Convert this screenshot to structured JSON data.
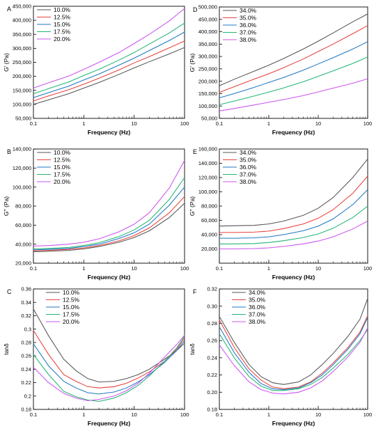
{
  "colors": {
    "gray": "#555555",
    "red": "#e8413a",
    "blue": "#1f77c4",
    "green": "#22b573",
    "violet": "#cc55ee"
  },
  "chart_data": [
    {
      "type": "line",
      "panel": "A",
      "xscale": "log",
      "xlabel": "Frequency (Hz)",
      "ylabel": "G' (Pa)",
      "xlim": [
        0.1,
        100
      ],
      "ylim": [
        50000,
        450000
      ],
      "xticks": [
        0.1,
        1,
        10,
        100
      ],
      "xticklabels": [
        "0.1",
        "1",
        "10",
        "100"
      ],
      "yticks": [
        50000,
        100000,
        150000,
        200000,
        250000,
        300000,
        350000,
        400000,
        450000
      ],
      "yticklabels": [
        "50,000",
        "100,000",
        "150,000",
        "200,000",
        "250,000",
        "300,000",
        "350,000",
        "400,000",
        "450,000"
      ],
      "legend_loc": "top-left",
      "x": [
        0.1,
        0.2,
        0.5,
        1,
        2,
        5,
        10,
        20,
        50,
        100
      ],
      "series": [
        {
          "name": "10.0%",
          "color": "gray",
          "values": [
            100000,
            116000,
            138000,
            158000,
            178000,
            207000,
            230000,
            252000,
            280000,
            303000
          ]
        },
        {
          "name": "12.5%",
          "color": "red",
          "values": [
            112000,
            130000,
            152000,
            172000,
            193000,
            223000,
            248000,
            270000,
            302000,
            326000
          ]
        },
        {
          "name": "15.0%",
          "color": "blue",
          "values": [
            124000,
            142000,
            165000,
            187000,
            208000,
            240000,
            265000,
            292000,
            328000,
            358000
          ]
        },
        {
          "name": "17.5%",
          "color": "green",
          "values": [
            138000,
            156000,
            180000,
            203000,
            225000,
            258000,
            285000,
            315000,
            355000,
            390000
          ]
        },
        {
          "name": "20.0%",
          "color": "violet",
          "values": [
            158000,
            177000,
            201000,
            225000,
            250000,
            285000,
            317000,
            350000,
            398000,
            442000
          ]
        }
      ]
    },
    {
      "type": "line",
      "panel": "D",
      "xscale": "log",
      "xlabel": "Frequency (Hz)",
      "ylabel": "G' (Pa)",
      "xlim": [
        0.1,
        100
      ],
      "ylim": [
        50000,
        500000
      ],
      "xticks": [
        0.1,
        1,
        10,
        100
      ],
      "xticklabels": [
        "0.1",
        "1",
        "10",
        "100"
      ],
      "yticks": [
        50000,
        100000,
        150000,
        200000,
        250000,
        300000,
        350000,
        400000,
        450000,
        500000
      ],
      "yticklabels": [
        "50,000",
        "100,000",
        "150,000",
        "200,000",
        "250,000",
        "300,000",
        "350,000",
        "400,000",
        "450,000",
        "500,000"
      ],
      "legend_loc": "top-left",
      "x": [
        0.1,
        0.2,
        0.5,
        1,
        2,
        5,
        10,
        20,
        50,
        100
      ],
      "series": [
        {
          "name": "34.0%",
          "color": "gray",
          "values": [
            182000,
            208000,
            240000,
            265000,
            292000,
            330000,
            362000,
            395000,
            440000,
            472000
          ]
        },
        {
          "name": "35.0%",
          "color": "red",
          "values": [
            155000,
            178000,
            208000,
            230000,
            255000,
            290000,
            320000,
            350000,
            392000,
            425000
          ]
        },
        {
          "name": "36.0%",
          "color": "blue",
          "values": [
            133000,
            150000,
            175000,
            195000,
            215000,
            245000,
            270000,
            295000,
            330000,
            360000
          ]
        },
        {
          "name": "37.0%",
          "color": "green",
          "values": [
            105000,
            120000,
            140000,
            156000,
            173000,
            198000,
            220000,
            242000,
            272000,
            298000
          ]
        },
        {
          "name": "38.0%",
          "color": "violet",
          "values": [
            80000,
            90000,
            104000,
            115000,
            126000,
            142000,
            157000,
            172000,
            192000,
            210000
          ]
        }
      ]
    },
    {
      "type": "line",
      "panel": "B",
      "xscale": "log",
      "xlabel": "Frequency (Hz)",
      "ylabel": "G'' (Pa)",
      "xlim": [
        0.1,
        100
      ],
      "ylim": [
        20000,
        140000
      ],
      "xticks": [
        0.1,
        1,
        10,
        100
      ],
      "xticklabels": [
        "0.1",
        "1",
        "10",
        "100"
      ],
      "yticks": [
        20000,
        40000,
        60000,
        80000,
        100000,
        120000,
        140000
      ],
      "yticklabels": [
        "20,000",
        "40,000",
        "60,000",
        "80,000",
        "100,000",
        "120,000",
        "140,000"
      ],
      "legend_loc": "top-left",
      "x": [
        0.1,
        0.2,
        0.5,
        1,
        2,
        5,
        10,
        20,
        50,
        100
      ],
      "series": [
        {
          "name": "10.0%",
          "color": "gray",
          "values": [
            32000,
            32500,
            33500,
            35000,
            37500,
            42000,
            47000,
            54000,
            68000,
            83000
          ]
        },
        {
          "name": "12.5%",
          "color": "red",
          "values": [
            33000,
            33500,
            34500,
            36000,
            38500,
            43500,
            49000,
            57000,
            73000,
            90000
          ]
        },
        {
          "name": "15.0%",
          "color": "blue",
          "values": [
            34000,
            34500,
            35500,
            37500,
            40000,
            46000,
            52000,
            61000,
            81000,
            100000
          ]
        },
        {
          "name": "17.5%",
          "color": "green",
          "values": [
            35000,
            35500,
            36500,
            38500,
            41500,
            48000,
            55000,
            65000,
            87000,
            110000
          ]
        },
        {
          "name": "20.0%",
          "color": "violet",
          "values": [
            38000,
            38500,
            40000,
            42000,
            45500,
            53000,
            61000,
            73000,
            99000,
            128000
          ]
        }
      ]
    },
    {
      "type": "line",
      "panel": "E",
      "xscale": "log",
      "xlabel": "Frequency (Hz)",
      "ylabel": "G'' (Pa)",
      "xlim": [
        0.1,
        100
      ],
      "ylim": [
        0,
        160000
      ],
      "xticks": [
        0.1,
        1,
        10,
        100
      ],
      "xticklabels": [
        "0.1",
        "1",
        "10",
        "100"
      ],
      "yticks": [
        20000,
        40000,
        60000,
        80000,
        100000,
        120000,
        140000,
        160000
      ],
      "yticklabels": [
        "20,000",
        "40,000",
        "60,000",
        "80,000",
        "100,000",
        "120,000",
        "140,000",
        "160,000"
      ],
      "legend_loc": "top-left",
      "x": [
        0.1,
        0.2,
        0.5,
        1,
        2,
        5,
        10,
        20,
        50,
        100
      ],
      "series": [
        {
          "name": "34.0%",
          "color": "gray",
          "values": [
            52000,
            52500,
            53000,
            55000,
            59000,
            67000,
            77000,
            92000,
            120000,
            146000
          ]
        },
        {
          "name": "35.0%",
          "color": "red",
          "values": [
            43000,
            43000,
            43500,
            45000,
            48500,
            55000,
            63000,
            75000,
            98000,
            122000
          ]
        },
        {
          "name": "36.0%",
          "color": "blue",
          "values": [
            35000,
            35000,
            35500,
            37000,
            40000,
            45500,
            52000,
            62000,
            82000,
            103000
          ]
        },
        {
          "name": "37.0%",
          "color": "green",
          "values": [
            27000,
            27000,
            27500,
            29000,
            31500,
            36000,
            41000,
            49000,
            64000,
            80000
          ]
        },
        {
          "name": "38.0%",
          "color": "violet",
          "values": [
            20000,
            20000,
            20500,
            21500,
            23500,
            27000,
            31000,
            37000,
            48000,
            59000
          ]
        }
      ]
    },
    {
      "type": "line",
      "panel": "C",
      "xscale": "log",
      "xlabel": "Frequency (Hz)",
      "ylabel": "tanδ",
      "xlim": [
        0.1,
        100
      ],
      "ylim": [
        0.18,
        0.36
      ],
      "xticks": [
        0.1,
        1,
        10,
        100
      ],
      "xticklabels": [
        "0.1",
        "1",
        "10",
        "100"
      ],
      "yticks": [
        0.18,
        0.2,
        0.22,
        0.24,
        0.26,
        0.28,
        0.3,
        0.32,
        0.34,
        0.36
      ],
      "yticklabels": [
        "0.18",
        "0.2",
        "0.22",
        "0.24",
        "0.26",
        "0.28",
        "0.3",
        "0.32",
        "0.34",
        "0.36"
      ],
      "legend_loc": "top-center",
      "x": [
        0.1,
        0.2,
        0.4,
        0.7,
        1.2,
        2,
        4,
        7,
        12,
        20,
        40,
        70,
        100
      ],
      "series": [
        {
          "name": "10.0%",
          "color": "gray",
          "values": [
            0.33,
            0.29,
            0.255,
            0.238,
            0.226,
            0.221,
            0.222,
            0.226,
            0.232,
            0.24,
            0.255,
            0.268,
            0.279
          ]
        },
        {
          "name": "12.5%",
          "color": "red",
          "values": [
            0.298,
            0.262,
            0.232,
            0.222,
            0.214,
            0.212,
            0.214,
            0.219,
            0.227,
            0.236,
            0.252,
            0.27,
            0.287
          ]
        },
        {
          "name": "15.0%",
          "color": "blue",
          "values": [
            0.278,
            0.245,
            0.222,
            0.212,
            0.205,
            0.203,
            0.206,
            0.212,
            0.221,
            0.232,
            0.25,
            0.268,
            0.283
          ]
        },
        {
          "name": "17.5%",
          "color": "green",
          "values": [
            0.262,
            0.232,
            0.207,
            0.199,
            0.194,
            0.192,
            0.197,
            0.205,
            0.216,
            0.23,
            0.252,
            0.272,
            0.29
          ]
        },
        {
          "name": "20.0%",
          "color": "violet",
          "values": [
            0.243,
            0.22,
            0.204,
            0.197,
            0.193,
            0.195,
            0.2,
            0.208,
            0.219,
            0.234,
            0.258,
            0.277,
            0.291
          ]
        }
      ]
    },
    {
      "type": "line",
      "panel": "F",
      "xscale": "log",
      "xlabel": "Frequency (Hz)",
      "ylabel": "tanδ",
      "xlim": [
        0.1,
        100
      ],
      "ylim": [
        0.18,
        0.32
      ],
      "xticks": [
        0.1,
        1,
        10,
        100
      ],
      "xticklabels": [
        "0.1",
        "1",
        "10",
        "100"
      ],
      "yticks": [
        0.18,
        0.2,
        0.22,
        0.24,
        0.26,
        0.28,
        0.3,
        0.32
      ],
      "yticklabels": [
        "0.18",
        "0.20",
        "0.22",
        "0.24",
        "0.26",
        "0.28",
        "0.30",
        "0.32"
      ],
      "legend_loc": "top-center",
      "x": [
        0.1,
        0.2,
        0.4,
        0.7,
        1.2,
        2,
        4,
        7,
        12,
        20,
        40,
        70,
        100
      ],
      "series": [
        {
          "name": "34.0%",
          "color": "gray",
          "values": [
            0.288,
            0.258,
            0.232,
            0.218,
            0.211,
            0.209,
            0.212,
            0.22,
            0.232,
            0.245,
            0.265,
            0.285,
            0.309
          ]
        },
        {
          "name": "35.0%",
          "color": "red",
          "values": [
            0.284,
            0.252,
            0.227,
            0.214,
            0.206,
            0.204,
            0.206,
            0.212,
            0.222,
            0.234,
            0.252,
            0.27,
            0.289
          ]
        },
        {
          "name": "36.0%",
          "color": "blue",
          "values": [
            0.276,
            0.246,
            0.223,
            0.21,
            0.204,
            0.203,
            0.205,
            0.211,
            0.22,
            0.232,
            0.25,
            0.268,
            0.287
          ]
        },
        {
          "name": "37.0%",
          "color": "green",
          "values": [
            0.268,
            0.24,
            0.218,
            0.207,
            0.202,
            0.202,
            0.204,
            0.209,
            0.217,
            0.228,
            0.244,
            0.26,
            0.273
          ]
        },
        {
          "name": "38.0%",
          "color": "violet",
          "values": [
            0.255,
            0.231,
            0.212,
            0.203,
            0.199,
            0.198,
            0.2,
            0.205,
            0.213,
            0.224,
            0.241,
            0.258,
            0.275
          ]
        }
      ]
    }
  ]
}
